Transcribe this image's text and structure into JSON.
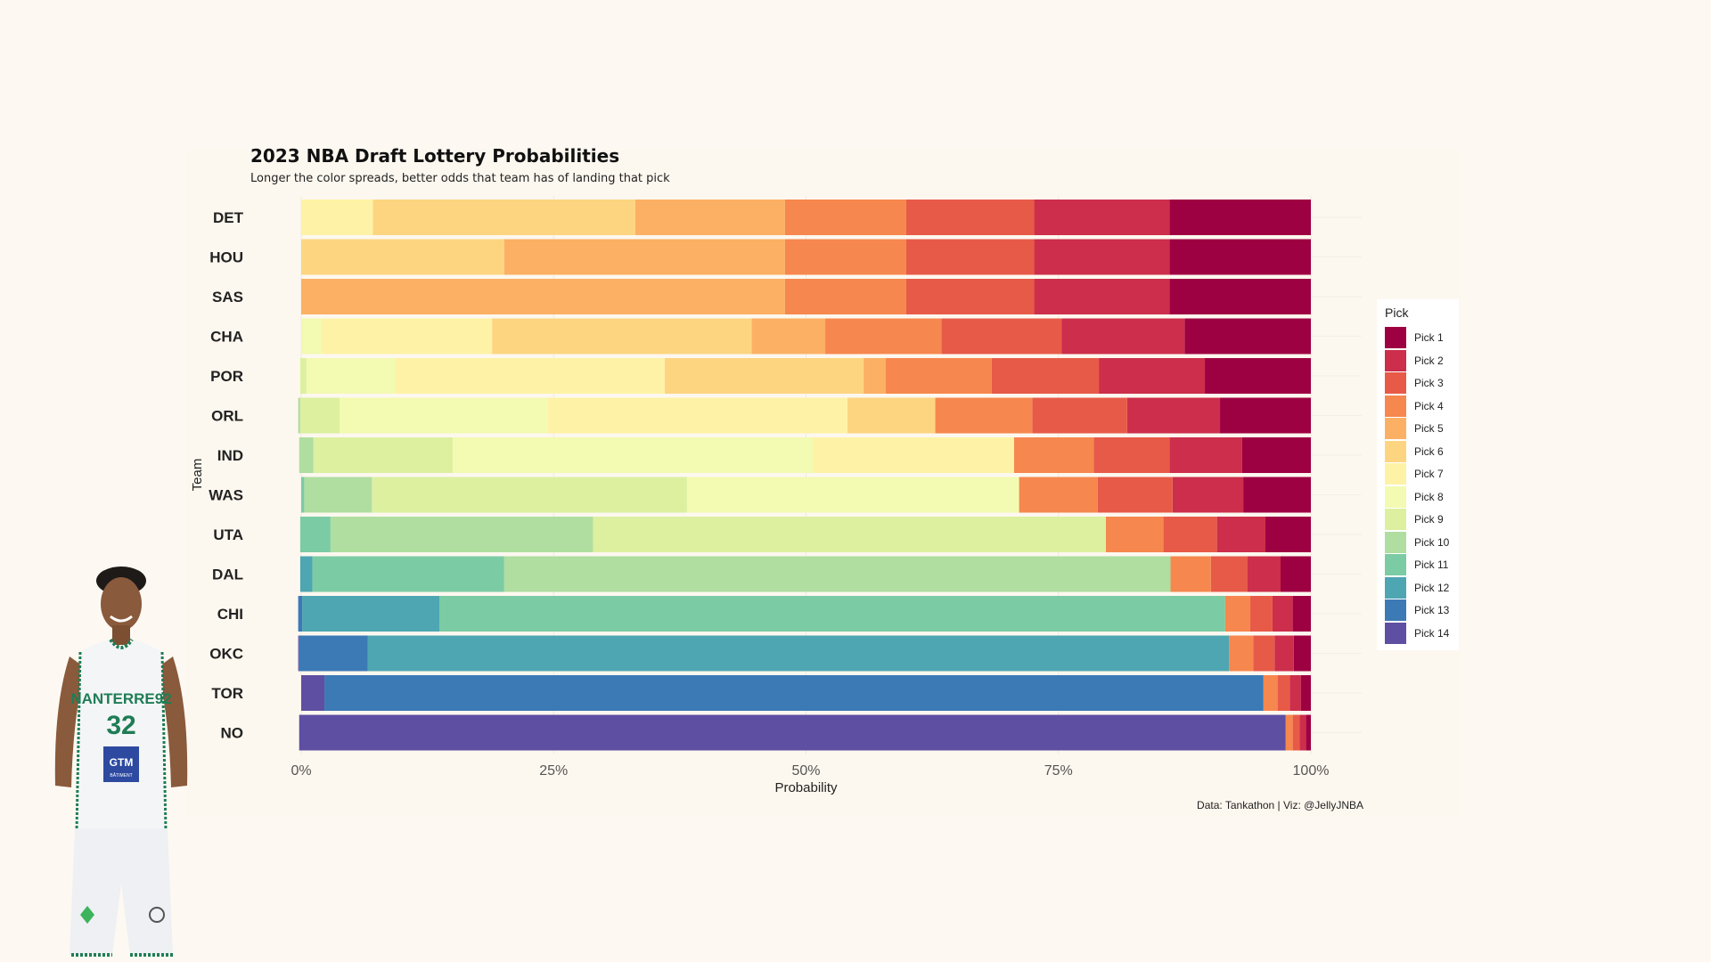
{
  "title": "2023 NBA Draft Lottery Probabilities",
  "subtitle": "Longer the color spreads, better odds that team has of landing that pick",
  "caption": "Data: Tankathon | Viz: @JellyJNBA",
  "legend_title": "Pick",
  "colors": [
    "#9e0142",
    "#cc2e4b",
    "#e75a48",
    "#f6874e",
    "#fcb064",
    "#fdd581",
    "#fef2a6",
    "#f3fab1",
    "#dcf0a0",
    "#afdea0",
    "#7bcba4",
    "#4ea6b2",
    "#3c7ab6",
    "#5e4fa2"
  ],
  "chart_data": {
    "type": "bar",
    "orientation": "horizontal",
    "stacked": true,
    "xlabel": "Probability",
    "ylabel": "Team",
    "xlim": [
      0,
      1
    ],
    "x_ticks": [
      "0%",
      "25%",
      "50%",
      "75%",
      "100%"
    ],
    "categories": [
      "DET",
      "HOU",
      "SAS",
      "CHA",
      "POR",
      "ORL",
      "IND",
      "WAS",
      "UTA",
      "DAL",
      "CHI",
      "OKC",
      "TOR",
      "NO"
    ],
    "series": [
      {
        "name": "Pick 1",
        "values": [
          0.14,
          0.14,
          0.14,
          0.125,
          0.105,
          0.09,
          0.068,
          0.067,
          0.045,
          0.03,
          0.018,
          0.017,
          0.01,
          0.005
        ]
      },
      {
        "name": "Pick 2",
        "values": [
          0.134,
          0.134,
          0.134,
          0.122,
          0.105,
          0.092,
          0.072,
          0.07,
          0.048,
          0.033,
          0.02,
          0.019,
          0.011,
          0.006
        ]
      },
      {
        "name": "Pick 3",
        "values": [
          0.127,
          0.127,
          0.127,
          0.119,
          0.106,
          0.094,
          0.075,
          0.074,
          0.053,
          0.036,
          0.022,
          0.021,
          0.012,
          0.007
        ]
      },
      {
        "name": "Pick 4",
        "values": [
          0.12,
          0.12,
          0.12,
          0.115,
          0.105,
          0.096,
          0.079,
          0.078,
          0.057,
          0.04,
          0.025,
          0.024,
          0.014,
          0.007
        ]
      },
      {
        "name": "Pick 5",
        "values": [
          0.148,
          0.278,
          0.479,
          0.073,
          0.022,
          0.0,
          0.0,
          0.0,
          0.0,
          0.0,
          0.0,
          0.0,
          0.0,
          0.0
        ]
      },
      {
        "name": "Pick 6",
        "values": [
          0.26,
          0.201,
          0.0,
          0.257,
          0.197,
          0.087,
          0.0,
          0.0,
          0.0,
          0.0,
          0.0,
          0.0,
          0.0,
          0.0
        ]
      },
      {
        "name": "Pick 7",
        "values": [
          0.071,
          0.0,
          0.0,
          0.169,
          0.267,
          0.297,
          0.199,
          0.0,
          0.0,
          0.0,
          0.0,
          0.0,
          0.0,
          0.0
        ]
      },
      {
        "name": "Pick 8",
        "values": [
          0.0,
          0.0,
          0.0,
          0.02,
          0.088,
          0.206,
          0.357,
          0.329,
          0.0,
          0.0,
          0.0,
          0.0,
          0.0,
          0.0
        ]
      },
      {
        "name": "Pick 9",
        "values": [
          0.0,
          0.0,
          0.0,
          0.0,
          0.006,
          0.039,
          0.138,
          0.312,
          0.508,
          0.0,
          0.0,
          0.0,
          0.0,
          0.0
        ]
      },
      {
        "name": "Pick 10",
        "values": [
          0.0,
          0.0,
          0.0,
          0.0,
          0.0,
          0.002,
          0.014,
          0.067,
          0.26,
          0.66,
          0.0,
          0.0,
          0.0,
          0.0
        ]
      },
      {
        "name": "Pick 11",
        "values": [
          0.0,
          0.0,
          0.0,
          0.0,
          0.0,
          0.0,
          0.0,
          0.003,
          0.03,
          0.19,
          0.778,
          0.0,
          0.0,
          0.0
        ]
      },
      {
        "name": "Pick 12",
        "values": [
          0.0,
          0.0,
          0.0,
          0.0,
          0.0,
          0.0,
          0.0,
          0.0,
          0.0,
          0.012,
          0.136,
          0.853,
          0.0,
          0.0
        ]
      },
      {
        "name": "Pick 13",
        "values": [
          0.0,
          0.0,
          0.0,
          0.0,
          0.0,
          0.0,
          0.0,
          0.0,
          0.0,
          0.0,
          0.004,
          0.068,
          0.93,
          0.0
        ]
      },
      {
        "name": "Pick 14",
        "values": [
          0.0,
          0.0,
          0.0,
          0.0,
          0.0,
          0.0,
          0.0,
          0.0,
          0.0,
          0.0,
          0.0,
          0.001,
          0.023,
          0.977
        ]
      }
    ]
  },
  "player": {
    "jersey_team": "NANTERRE92",
    "jersey_number": "32",
    "sponsor": "GTM",
    "sponsor_sub": "BÂTIMENT"
  }
}
